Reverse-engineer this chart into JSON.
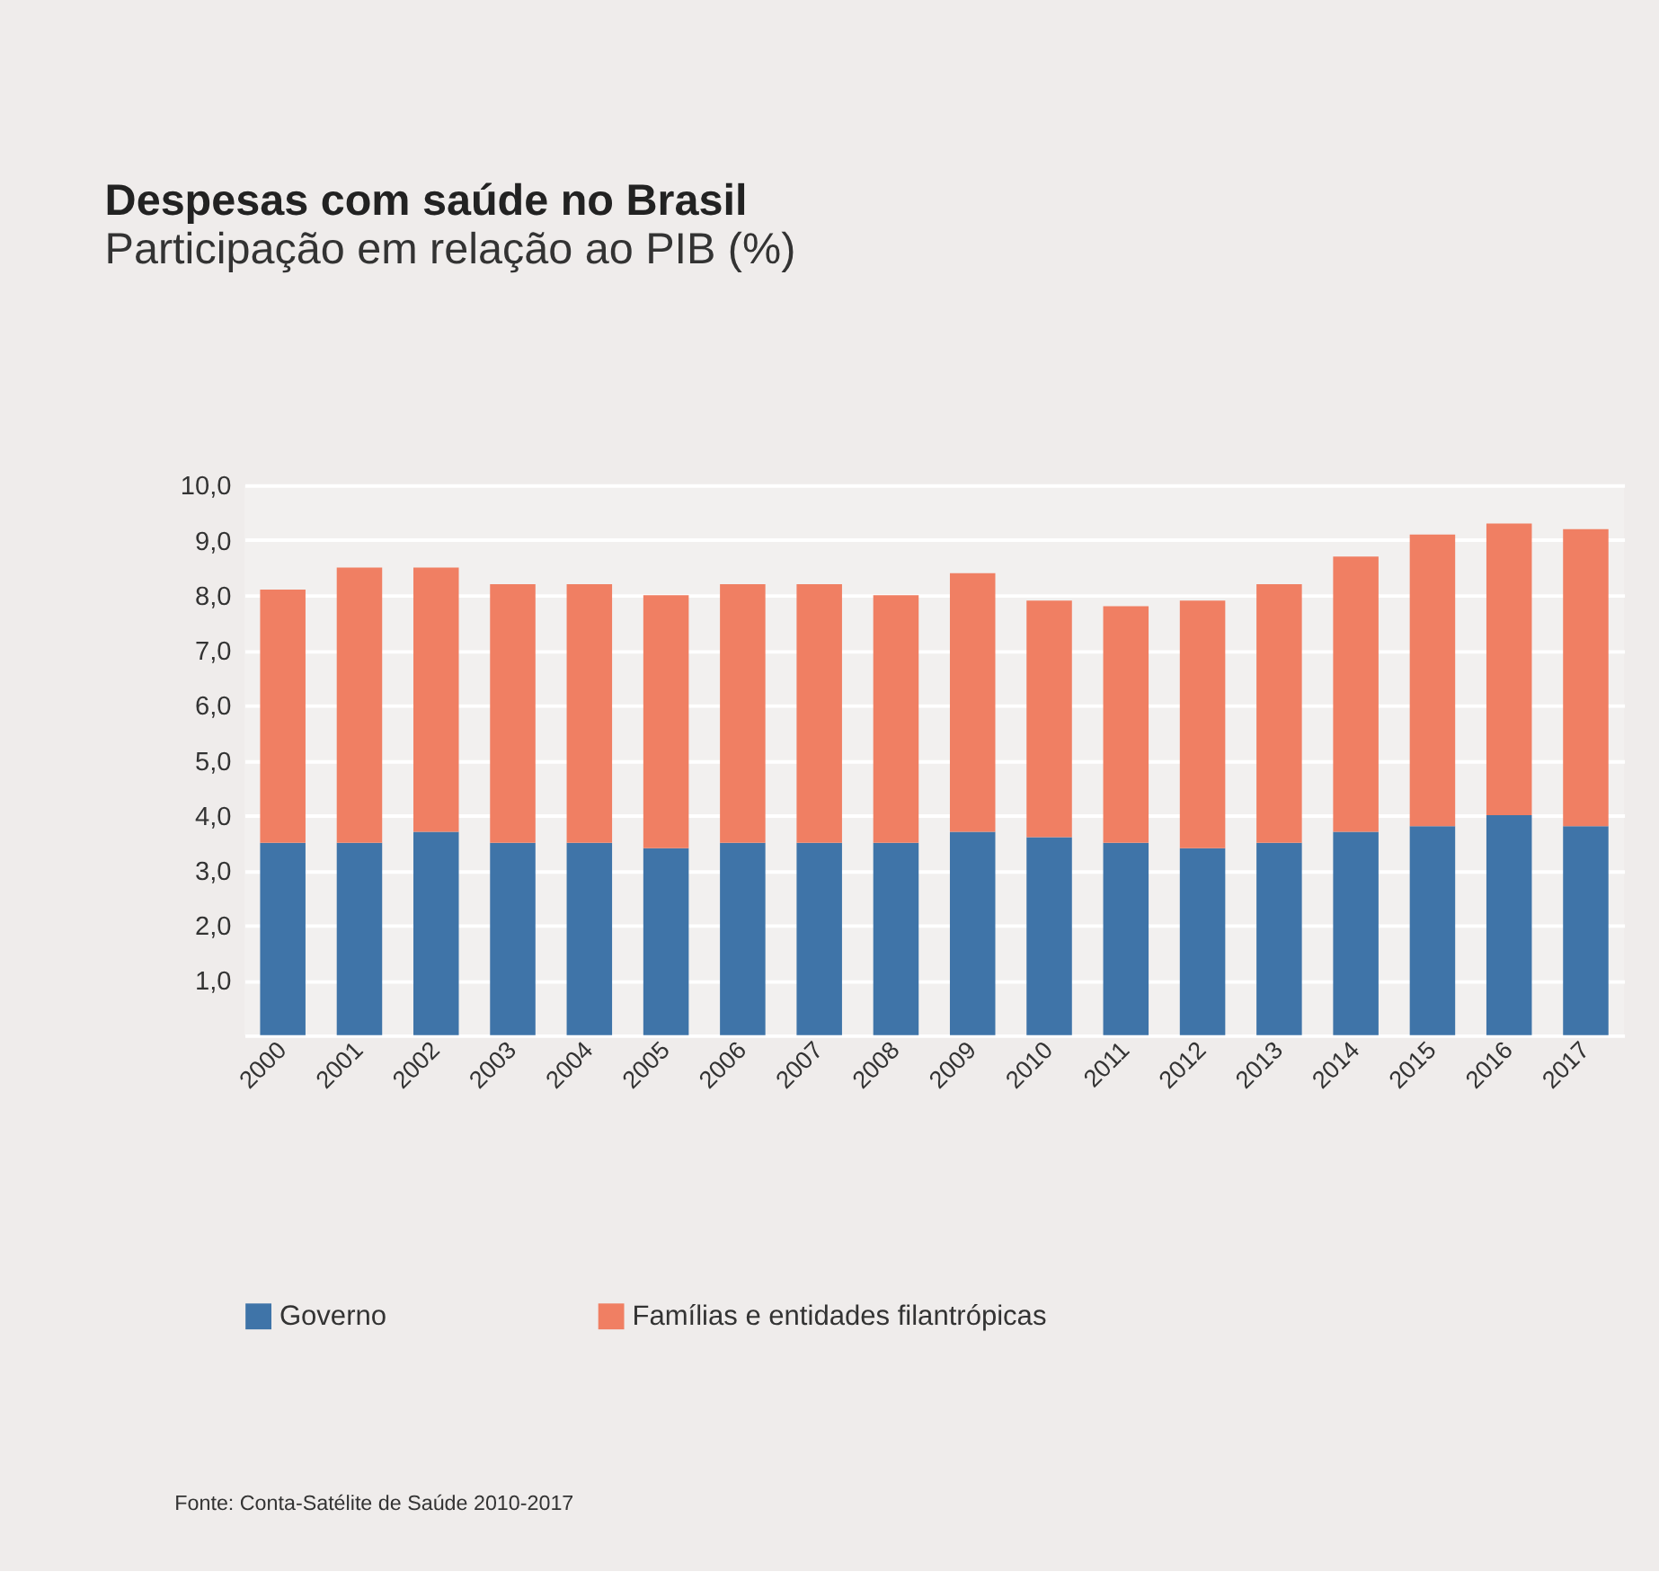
{
  "chart_data": {
    "type": "bar",
    "title": "Despesas com saúde no Brasil",
    "subtitle": "Participação em relação ao PIB (%)",
    "categories": [
      "2000",
      "2001",
      "2002",
      "2003",
      "2004",
      "2005",
      "2006",
      "2007",
      "2008",
      "2009",
      "2010",
      "2011",
      "2012",
      "2013",
      "2014",
      "2015",
      "2016",
      "2017"
    ],
    "stacked": true,
    "series": [
      {
        "name": "Governo",
        "color": "#3f74a8",
        "values": [
          3.5,
          3.5,
          3.7,
          3.5,
          3.5,
          3.4,
          3.5,
          3.5,
          3.5,
          3.7,
          3.6,
          3.5,
          3.4,
          3.5,
          3.7,
          3.8,
          4.0,
          3.8
        ]
      },
      {
        "name": "Famílias e entidades filantrópicas",
        "color": "#f07f63",
        "values": [
          4.6,
          5.0,
          4.8,
          4.7,
          4.7,
          4.6,
          4.7,
          4.7,
          4.5,
          4.7,
          4.3,
          4.3,
          4.5,
          4.7,
          5.0,
          5.3,
          5.3,
          5.4
        ]
      }
    ],
    "ylim": [
      0,
      10
    ],
    "yticks": [
      {
        "value": 1,
        "label": "1,0"
      },
      {
        "value": 2,
        "label": "2,0"
      },
      {
        "value": 3,
        "label": "3,0"
      },
      {
        "value": 4,
        "label": "4,0"
      },
      {
        "value": 5,
        "label": "5,0"
      },
      {
        "value": 6,
        "label": "6,0"
      },
      {
        "value": 7,
        "label": "7,0"
      },
      {
        "value": 8,
        "label": "8,0"
      },
      {
        "value": 9,
        "label": "9,0"
      },
      {
        "value": 10,
        "label": "10,0"
      }
    ],
    "grid": "y",
    "legend": "bottom",
    "annotations": [
      "Fonte: Conta-Satélite de Saúde 2010-2017"
    ]
  }
}
